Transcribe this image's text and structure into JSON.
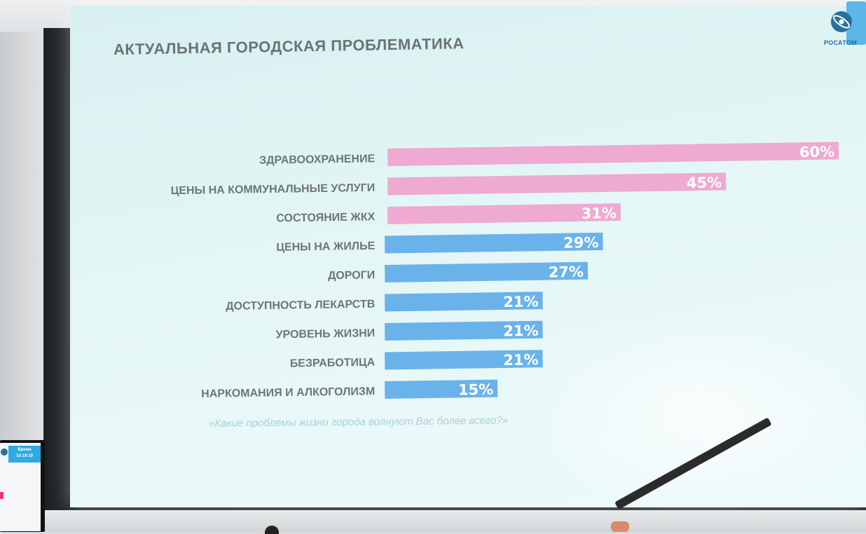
{
  "slide": {
    "title": "АКТУАЛЬНАЯ ГОРОДСКАЯ ПРОБЛЕМАТИКА",
    "question": "«Какие проблемы жизни города волнуют Вас более всего?»"
  },
  "logo": {
    "text": "РОСАТОМ",
    "color": "#2a6f9e"
  },
  "monitor": {
    "label_line1": "Время",
    "label_line2": "10:19:19"
  },
  "colors": {
    "pink": "#eeaad0",
    "blue": "#6ab2ea"
  },
  "chart_data": {
    "type": "bar",
    "orientation": "horizontal",
    "title": "АКТУАЛЬНАЯ ГОРОДСКАЯ ПРОБЛЕМАТИКА",
    "categories": [
      "ЗДРАВООХРАНЕНИЕ",
      "ЦЕНЫ НА КОММУНАЛЬНЫЕ УСЛУГИ",
      "СОСТОЯНИЕ ЖКХ",
      "ЦЕНЫ НА ЖИЛЬЕ",
      "ДОРОГИ",
      "ДОСТУПНОСТЬ ЛЕКАРСТВ",
      "УРОВЕНЬ ЖИЗНИ",
      "БЕЗРАБОТИЦА",
      "НАРКОМАНИЯ И АЛКОГОЛИЗМ"
    ],
    "values": [
      60,
      45,
      31,
      29,
      27,
      21,
      21,
      21,
      15
    ],
    "value_labels": [
      "60%",
      "45%",
      "31%",
      "29%",
      "27%",
      "21%",
      "21%",
      "21%",
      "15%"
    ],
    "bar_colors": [
      "pink",
      "pink",
      "pink",
      "blue",
      "blue",
      "blue",
      "blue",
      "blue",
      "blue"
    ],
    "xlim": [
      0,
      60
    ],
    "grid": false,
    "legend": "none"
  }
}
